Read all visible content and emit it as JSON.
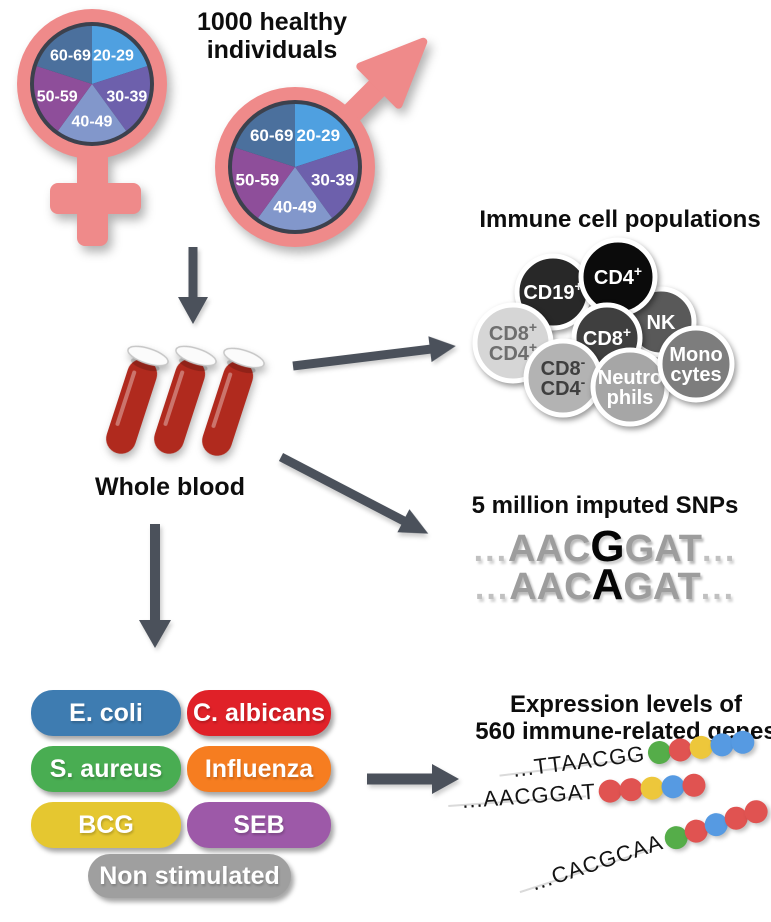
{
  "cohort": {
    "title_line1": "1000 healthy",
    "title_line2": "individuals",
    "symbol_color": "#ef8a8a",
    "pie_ring_color": "#3c414d",
    "age_groups": [
      {
        "label": "20-29",
        "color": "#4fa0e0"
      },
      {
        "label": "30-39",
        "color": "#6d60ac"
      },
      {
        "label": "40-49",
        "color": "#8297cb"
      },
      {
        "label": "50-59",
        "color": "#8e4e9a"
      },
      {
        "label": "60-69",
        "color": "#4b709d"
      }
    ]
  },
  "arrow_color": "#4b515b",
  "whole_blood": {
    "label": "Whole blood",
    "blood_color": "#b02a1e"
  },
  "immune_cells": {
    "title": "Immune cell populations",
    "cells": [
      {
        "name": "CD19+",
        "lines": [
          [
            "CD19",
            "+"
          ]
        ],
        "fill": "#282828",
        "text_color": "#ffffff"
      },
      {
        "name": "NK",
        "lines": [
          [
            "NK",
            ""
          ]
        ],
        "fill": "#595959",
        "text_color": "#ffffff"
      },
      {
        "name": "CD4+",
        "lines": [
          [
            "CD4",
            "+"
          ]
        ],
        "fill": "#0b0b0b",
        "text_color": "#ffffff"
      },
      {
        "name": "CD8+",
        "lines": [
          [
            "CD8",
            "+"
          ]
        ],
        "fill": "#3f3f3f",
        "text_color": "#ffffff"
      },
      {
        "name": "CD8+ CD4+",
        "lines": [
          [
            "CD8",
            "+"
          ],
          [
            "CD4",
            "+"
          ]
        ],
        "fill": "#d6d6d6",
        "text_color": "#6e6e6e"
      },
      {
        "name": "CD8- CD4-",
        "lines": [
          [
            "CD8",
            "-"
          ],
          [
            "CD4",
            "-"
          ]
        ],
        "fill": "#b3b3b3",
        "text_color": "#3f3f3f"
      },
      {
        "name": "Neutrophils",
        "lines": [
          [
            "Neutro",
            ""
          ],
          [
            "phils",
            ""
          ]
        ],
        "fill": "#a6a6a6",
        "text_color": "#ffffff"
      },
      {
        "name": "Monocytes",
        "lines": [
          [
            "Mono",
            ""
          ],
          [
            "cytes",
            ""
          ]
        ],
        "fill": "#7d7d7d",
        "text_color": "#ffffff"
      }
    ]
  },
  "snps": {
    "title": "5 million imputed SNPs",
    "sequences": [
      {
        "pre": "AAC",
        "snp": "G",
        "post": "GAT"
      },
      {
        "pre": "AAC",
        "snp": "A",
        "post": "GAT"
      }
    ]
  },
  "stimuli": {
    "items": [
      {
        "label": "E. coli",
        "color": "#3e7cb1"
      },
      {
        "label": "C. albicans",
        "color": "#e02128"
      },
      {
        "label": "S. aureus",
        "color": "#49ad52"
      },
      {
        "label": "Influenza",
        "color": "#f67d20"
      },
      {
        "label": "BCG",
        "color": "#e5c730"
      },
      {
        "label": "SEB",
        "color": "#9d59a8"
      },
      {
        "label": "Non stimulated",
        "color": "#9f9f9f"
      }
    ]
  },
  "expression": {
    "title_line1": "Expression levels of",
    "title_line2": "560 immune-related genes",
    "dot_colors": {
      "green": "#55ad49",
      "red": "#e05351",
      "yellow": "#edc73b",
      "blue": "#569ae2"
    },
    "rows": [
      {
        "sequence": "...TTAACGG",
        "dots": [
          "green",
          "red",
          "yellow",
          "blue",
          "blue"
        ]
      },
      {
        "sequence": "...AACGGAT",
        "dots": [
          "red",
          "red",
          "yellow",
          "blue",
          "red"
        ]
      },
      {
        "sequence": "...CACGCAA",
        "dots": [
          "green",
          "red",
          "blue",
          "red",
          "red"
        ]
      }
    ]
  }
}
